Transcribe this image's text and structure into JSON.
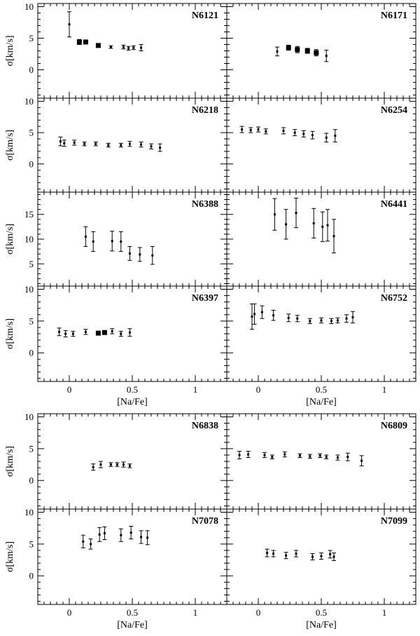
{
  "chart_data": [
    {
      "type": "scatter",
      "label": "N6121",
      "ylabel": "σ[km/s]",
      "xlabel": "",
      "xlim": [
        -0.25,
        1.25
      ],
      "ylim": [
        -4.5,
        10.5
      ],
      "yticks": [
        "0",
        "5",
        "10"
      ],
      "xticks": [],
      "points": [
        {
          "x": 0.0,
          "y": 7.2,
          "err": 2.0,
          "size": 3
        },
        {
          "x": 0.08,
          "y": 4.4,
          "err": 0.4,
          "size": 7
        },
        {
          "x": 0.13,
          "y": 4.4,
          "err": 0.3,
          "size": 7
        },
        {
          "x": 0.23,
          "y": 3.85,
          "err": 0.25,
          "size": 7
        },
        {
          "x": 0.33,
          "y": 3.6,
          "err": 0.2,
          "size": 3
        },
        {
          "x": 0.43,
          "y": 3.6,
          "err": 0.3,
          "size": 3
        },
        {
          "x": 0.47,
          "y": 3.4,
          "err": 0.3,
          "size": 3
        },
        {
          "x": 0.51,
          "y": 3.5,
          "err": 0.3,
          "size": 3
        },
        {
          "x": 0.57,
          "y": 3.5,
          "err": 0.5,
          "size": 3
        }
      ]
    },
    {
      "type": "scatter",
      "label": "N6171",
      "ylabel": "",
      "xlabel": "",
      "xlim": [
        -0.25,
        1.25
      ],
      "ylim": [
        -4.5,
        10.5
      ],
      "yticks": [],
      "xticks": [],
      "points": [
        {
          "x": 0.15,
          "y": 2.9,
          "err": 0.7,
          "size": 3
        },
        {
          "x": 0.24,
          "y": 3.5,
          "err": 0.4,
          "size": 7
        },
        {
          "x": 0.31,
          "y": 3.2,
          "err": 0.5,
          "size": 7
        },
        {
          "x": 0.39,
          "y": 3.0,
          "err": 0.4,
          "size": 7
        },
        {
          "x": 0.46,
          "y": 2.7,
          "err": 0.5,
          "size": 7
        },
        {
          "x": 0.54,
          "y": 2.2,
          "err": 0.9,
          "size": 3
        }
      ]
    },
    {
      "type": "scatter",
      "label": "N6218",
      "ylabel": "σ[km/s]",
      "xlabel": "",
      "xlim": [
        -0.25,
        1.25
      ],
      "ylim": [
        -4.5,
        10.5
      ],
      "yticks": [
        "0",
        "5",
        "10"
      ],
      "xticks": [],
      "points": [
        {
          "x": -0.07,
          "y": 3.6,
          "err": 0.7,
          "size": 3
        },
        {
          "x": -0.04,
          "y": 3.3,
          "err": 0.5,
          "size": 3
        },
        {
          "x": 0.04,
          "y": 3.4,
          "err": 0.4,
          "size": 3
        },
        {
          "x": 0.12,
          "y": 3.2,
          "err": 0.3,
          "size": 3
        },
        {
          "x": 0.21,
          "y": 3.2,
          "err": 0.3,
          "size": 3
        },
        {
          "x": 0.31,
          "y": 3.0,
          "err": 0.3,
          "size": 3
        },
        {
          "x": 0.41,
          "y": 3.0,
          "err": 0.3,
          "size": 3
        },
        {
          "x": 0.48,
          "y": 3.2,
          "err": 0.4,
          "size": 3
        },
        {
          "x": 0.57,
          "y": 3.1,
          "err": 0.4,
          "size": 3
        },
        {
          "x": 0.65,
          "y": 2.8,
          "err": 0.4,
          "size": 3
        },
        {
          "x": 0.72,
          "y": 2.6,
          "err": 0.6,
          "size": 3
        }
      ]
    },
    {
      "type": "scatter",
      "label": "N6254",
      "ylabel": "",
      "xlabel": "",
      "xlim": [
        -0.25,
        1.25
      ],
      "ylim": [
        -4.5,
        10.5
      ],
      "yticks": [],
      "xticks": [],
      "points": [
        {
          "x": -0.13,
          "y": 5.5,
          "err": 0.5,
          "size": 3
        },
        {
          "x": -0.06,
          "y": 5.4,
          "err": 0.4,
          "size": 3
        },
        {
          "x": 0.0,
          "y": 5.5,
          "err": 0.4,
          "size": 3
        },
        {
          "x": 0.06,
          "y": 5.2,
          "err": 0.4,
          "size": 3
        },
        {
          "x": 0.2,
          "y": 5.3,
          "err": 0.5,
          "size": 3
        },
        {
          "x": 0.29,
          "y": 5.0,
          "err": 0.5,
          "size": 3
        },
        {
          "x": 0.36,
          "y": 4.8,
          "err": 0.5,
          "size": 3
        },
        {
          "x": 0.43,
          "y": 4.6,
          "err": 0.6,
          "size": 3
        },
        {
          "x": 0.54,
          "y": 4.2,
          "err": 0.7,
          "size": 3
        },
        {
          "x": 0.61,
          "y": 4.5,
          "err": 1.0,
          "size": 3
        }
      ]
    },
    {
      "type": "scatter",
      "label": "N6388",
      "ylabel": "σ[km/s]",
      "xlabel": "",
      "xlim": [
        -0.25,
        1.25
      ],
      "ylim": [
        0.5,
        19.5
      ],
      "yticks": [
        "5",
        "10",
        "15"
      ],
      "xticks": [],
      "points": [
        {
          "x": 0.13,
          "y": 10.5,
          "err": 2.0,
          "size": 3
        },
        {
          "x": 0.19,
          "y": 9.5,
          "err": 2.0,
          "size": 3
        },
        {
          "x": 0.34,
          "y": 9.6,
          "err": 2.0,
          "size": 3
        },
        {
          "x": 0.41,
          "y": 9.5,
          "err": 2.0,
          "size": 3
        },
        {
          "x": 0.48,
          "y": 7.1,
          "err": 1.4,
          "size": 3
        },
        {
          "x": 0.56,
          "y": 6.9,
          "err": 1.4,
          "size": 3
        },
        {
          "x": 0.66,
          "y": 6.7,
          "err": 1.8,
          "size": 3
        }
      ]
    },
    {
      "type": "scatter",
      "label": "N6441",
      "ylabel": "",
      "xlabel": "",
      "xlim": [
        -0.25,
        1.25
      ],
      "ylim": [
        0.5,
        19.5
      ],
      "yticks": [],
      "xticks": [],
      "points": [
        {
          "x": 0.13,
          "y": 15.0,
          "err": 3.2,
          "size": 3
        },
        {
          "x": 0.22,
          "y": 13.0,
          "err": 3.0,
          "size": 3
        },
        {
          "x": 0.3,
          "y": 15.3,
          "err": 3.0,
          "size": 3
        },
        {
          "x": 0.44,
          "y": 13.2,
          "err": 3.0,
          "size": 3
        },
        {
          "x": 0.51,
          "y": 12.5,
          "err": 3.0,
          "size": 3
        },
        {
          "x": 0.55,
          "y": 12.8,
          "err": 3.2,
          "size": 3
        },
        {
          "x": 0.6,
          "y": 10.6,
          "err": 3.4,
          "size": 3
        }
      ]
    },
    {
      "type": "scatter",
      "label": "N6397",
      "ylabel": "σ[km/s]",
      "xlabel": "[Na/Fe]",
      "xlim": [
        -0.25,
        1.25
      ],
      "ylim": [
        -4.5,
        10.5
      ],
      "yticks": [
        "0",
        "5",
        "10"
      ],
      "xticks": [
        "0",
        "0.5",
        "1"
      ],
      "points": [
        {
          "x": -0.08,
          "y": 3.3,
          "err": 0.6,
          "size": 3
        },
        {
          "x": -0.03,
          "y": 3.0,
          "err": 0.5,
          "size": 3
        },
        {
          "x": 0.03,
          "y": 3.0,
          "err": 0.4,
          "size": 3
        },
        {
          "x": 0.13,
          "y": 3.3,
          "err": 0.4,
          "size": 3
        },
        {
          "x": 0.23,
          "y": 3.1,
          "err": 0.25,
          "size": 7
        },
        {
          "x": 0.28,
          "y": 3.2,
          "err": 0.25,
          "size": 7
        },
        {
          "x": 0.34,
          "y": 3.4,
          "err": 0.4,
          "size": 3
        },
        {
          "x": 0.41,
          "y": 3.0,
          "err": 0.4,
          "size": 3
        },
        {
          "x": 0.48,
          "y": 3.2,
          "err": 0.6,
          "size": 3
        }
      ]
    },
    {
      "type": "scatter",
      "label": "N6752",
      "ylabel": "",
      "xlabel": "[Na/Fe]",
      "xlim": [
        -0.25,
        1.25
      ],
      "ylim": [
        -4.5,
        10.5
      ],
      "yticks": [],
      "xticks": [
        "0",
        "0.5",
        "1"
      ],
      "points": [
        {
          "x": -0.05,
          "y": 5.7,
          "err": 2.0,
          "size": 3
        },
        {
          "x": -0.03,
          "y": 6.1,
          "err": 1.6,
          "size": 3
        },
        {
          "x": 0.03,
          "y": 6.4,
          "err": 1.0,
          "size": 3
        },
        {
          "x": 0.12,
          "y": 5.9,
          "err": 0.8,
          "size": 3
        },
        {
          "x": 0.24,
          "y": 5.5,
          "err": 0.6,
          "size": 3
        },
        {
          "x": 0.31,
          "y": 5.4,
          "err": 0.5,
          "size": 3
        },
        {
          "x": 0.41,
          "y": 5.0,
          "err": 0.4,
          "size": 3
        },
        {
          "x": 0.5,
          "y": 5.1,
          "err": 0.4,
          "size": 3
        },
        {
          "x": 0.58,
          "y": 5.0,
          "err": 0.4,
          "size": 3
        },
        {
          "x": 0.63,
          "y": 5.1,
          "err": 0.4,
          "size": 3
        },
        {
          "x": 0.7,
          "y": 5.4,
          "err": 0.6,
          "size": 3
        },
        {
          "x": 0.75,
          "y": 5.6,
          "err": 0.9,
          "size": 3
        }
      ]
    },
    {
      "type": "scatter",
      "label": "N6838",
      "ylabel": "σ[km/s]",
      "xlabel": "",
      "xlim": [
        -0.25,
        1.25
      ],
      "ylim": [
        -4.5,
        10.5
      ],
      "yticks": [
        "0",
        "5",
        "10"
      ],
      "xticks": [],
      "points": [
        {
          "x": 0.19,
          "y": 2.1,
          "err": 0.5,
          "size": 3
        },
        {
          "x": 0.25,
          "y": 2.5,
          "err": 0.5,
          "size": 3
        },
        {
          "x": 0.33,
          "y": 2.5,
          "err": 0.3,
          "size": 3
        },
        {
          "x": 0.38,
          "y": 2.5,
          "err": 0.3,
          "size": 3
        },
        {
          "x": 0.43,
          "y": 2.5,
          "err": 0.4,
          "size": 3
        },
        {
          "x": 0.48,
          "y": 2.3,
          "err": 0.3,
          "size": 3
        }
      ]
    },
    {
      "type": "scatter",
      "label": "N6809",
      "ylabel": "",
      "xlabel": "",
      "xlim": [
        -0.25,
        1.25
      ],
      "ylim": [
        -4.5,
        10.5
      ],
      "yticks": [],
      "xticks": [],
      "points": [
        {
          "x": -0.15,
          "y": 4.0,
          "err": 0.6,
          "size": 3
        },
        {
          "x": -0.08,
          "y": 4.1,
          "err": 0.5,
          "size": 3
        },
        {
          "x": 0.05,
          "y": 4.0,
          "err": 0.4,
          "size": 3
        },
        {
          "x": 0.11,
          "y": 3.7,
          "err": 0.3,
          "size": 3
        },
        {
          "x": 0.21,
          "y": 4.1,
          "err": 0.4,
          "size": 3
        },
        {
          "x": 0.33,
          "y": 3.9,
          "err": 0.3,
          "size": 3
        },
        {
          "x": 0.41,
          "y": 3.8,
          "err": 0.3,
          "size": 3
        },
        {
          "x": 0.49,
          "y": 3.9,
          "err": 0.3,
          "size": 3
        },
        {
          "x": 0.54,
          "y": 3.7,
          "err": 0.3,
          "size": 3
        },
        {
          "x": 0.63,
          "y": 3.6,
          "err": 0.4,
          "size": 3
        },
        {
          "x": 0.71,
          "y": 3.7,
          "err": 0.6,
          "size": 3
        },
        {
          "x": 0.82,
          "y": 3.1,
          "err": 0.8,
          "size": 3
        }
      ]
    },
    {
      "type": "scatter",
      "label": "N7078",
      "ylabel": "σ[km/s]",
      "xlabel": "[Na/Fe]",
      "xlim": [
        -0.25,
        1.25
      ],
      "ylim": [
        -4.5,
        10.5
      ],
      "yticks": [
        "0",
        "5",
        "10"
      ],
      "xticks": [
        "0",
        "0.5",
        "1"
      ],
      "points": [
        {
          "x": 0.11,
          "y": 5.4,
          "err": 1.0,
          "size": 3
        },
        {
          "x": 0.17,
          "y": 5.0,
          "err": 0.8,
          "size": 3
        },
        {
          "x": 0.24,
          "y": 6.5,
          "err": 1.1,
          "size": 3
        },
        {
          "x": 0.28,
          "y": 6.7,
          "err": 1.0,
          "size": 3
        },
        {
          "x": 0.41,
          "y": 6.4,
          "err": 1.0,
          "size": 3
        },
        {
          "x": 0.49,
          "y": 6.8,
          "err": 1.0,
          "size": 3
        },
        {
          "x": 0.57,
          "y": 6.1,
          "err": 1.0,
          "size": 3
        },
        {
          "x": 0.62,
          "y": 6.0,
          "err": 1.1,
          "size": 3
        }
      ]
    },
    {
      "type": "scatter",
      "label": "N7099",
      "ylabel": "",
      "xlabel": "[Na/Fe]",
      "xlim": [
        -0.25,
        1.25
      ],
      "ylim": [
        -4.5,
        10.5
      ],
      "yticks": [],
      "xticks": [
        "0",
        "0.5",
        "1"
      ],
      "points": [
        {
          "x": 0.07,
          "y": 3.6,
          "err": 0.6,
          "size": 3
        },
        {
          "x": 0.12,
          "y": 3.5,
          "err": 0.5,
          "size": 3
        },
        {
          "x": 0.22,
          "y": 3.2,
          "err": 0.5,
          "size": 3
        },
        {
          "x": 0.3,
          "y": 3.5,
          "err": 0.5,
          "size": 3
        },
        {
          "x": 0.43,
          "y": 3.0,
          "err": 0.5,
          "size": 3
        },
        {
          "x": 0.5,
          "y": 3.1,
          "err": 0.5,
          "size": 3
        },
        {
          "x": 0.57,
          "y": 3.4,
          "err": 0.6,
          "size": 3
        },
        {
          "x": 0.6,
          "y": 3.0,
          "err": 0.6,
          "size": 3
        }
      ]
    }
  ]
}
